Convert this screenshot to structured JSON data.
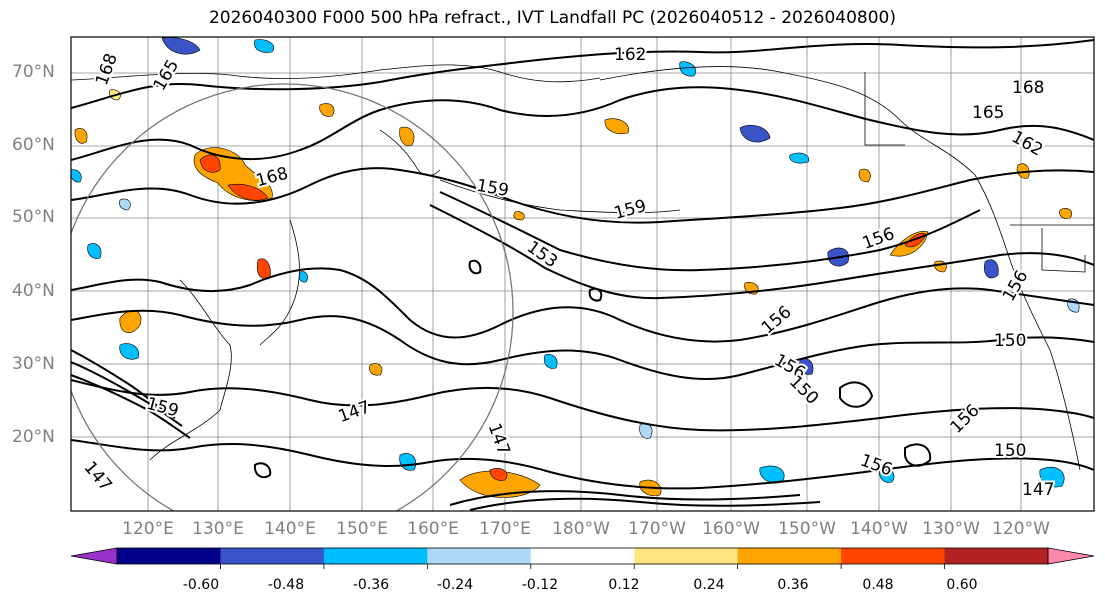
{
  "title": "2026040300 F000 500 hPa refract., IVT Landfall PC (2026040512 - 2026040800)",
  "lat_labels": [
    "70°N",
    "60°N",
    "50°N",
    "40°N",
    "30°N",
    "20°N"
  ],
  "lon_labels": [
    "120°E",
    "130°E",
    "140°E",
    "150°E",
    "160°E",
    "170°E",
    "180°W",
    "170°W",
    "160°W",
    "150°W",
    "140°W",
    "130°W",
    "120°W"
  ],
  "contour_labels": [
    "168",
    "165",
    "162",
    "168",
    "165",
    "162",
    "168",
    "159",
    "159",
    "153",
    "156",
    "156",
    "156",
    "156",
    "150",
    "150",
    "147",
    "147",
    "147",
    "147",
    "156",
    "150",
    "156",
    "159"
  ],
  "colorbar": {
    "ticks": [
      "-0.60",
      "-0.48",
      "-0.36",
      "-0.24",
      "-0.12",
      "0.12",
      "0.24",
      "0.36",
      "0.48",
      "0.60"
    ],
    "colors": [
      "#9932cc",
      "#00008b",
      "#3a53c8",
      "#00bfff",
      "#add8f8",
      "#ffffff",
      "#ffe680",
      "#ffa500",
      "#ff4500",
      "#b22222",
      "#ff88aa"
    ]
  },
  "colors": {
    "contour": "#000000",
    "graticule": "#888888",
    "circle": "#777777"
  }
}
